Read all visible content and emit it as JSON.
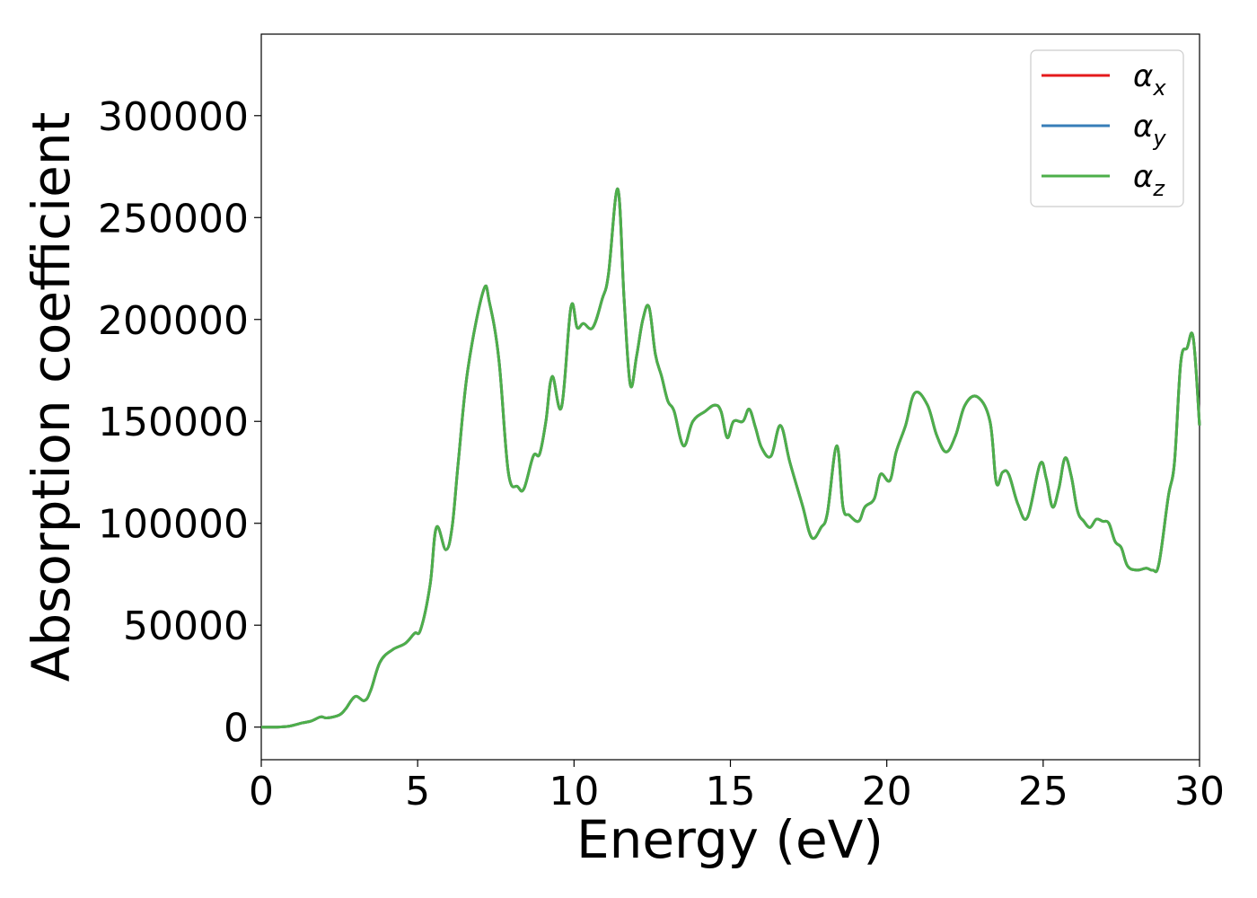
{
  "chart_data": {
    "type": "line",
    "xlabel": "Energy (eV)",
    "ylabel": "Absorption coefficient",
    "xlim": [
      0,
      30
    ],
    "ylim": [
      -16000,
      340000
    ],
    "xticks": [
      0,
      5,
      10,
      15,
      20,
      25,
      30
    ],
    "xtick_labels": [
      "0",
      "5",
      "10",
      "15",
      "20",
      "25",
      "30"
    ],
    "yticks": [
      0,
      50000,
      100000,
      150000,
      200000,
      250000,
      300000
    ],
    "ytick_labels": [
      "0",
      "50000",
      "100000",
      "150000",
      "200000",
      "250000",
      "300000"
    ],
    "grid": false,
    "legend_position": "top-right",
    "x": [
      0,
      0.5,
      0.9,
      1.3,
      1.6,
      1.9,
      2.1,
      2.5,
      2.7,
      3.0,
      3.3,
      3.5,
      3.8,
      4.2,
      4.6,
      4.9,
      5.1,
      5.4,
      5.6,
      5.9,
      6.1,
      6.3,
      6.6,
      7.1,
      7.3,
      7.6,
      7.9,
      8.2,
      8.4,
      8.7,
      8.9,
      9.1,
      9.3,
      9.6,
      9.9,
      10.1,
      10.3,
      10.6,
      10.9,
      11.1,
      11.4,
      11.6,
      11.8,
      12.0,
      12.2,
      12.4,
      12.6,
      12.8,
      13.0,
      13.2,
      13.5,
      13.8,
      14.2,
      14.5,
      14.7,
      14.9,
      15.1,
      15.4,
      15.6,
      15.8,
      16.0,
      16.3,
      16.6,
      16.9,
      17.3,
      17.6,
      17.9,
      18.1,
      18.4,
      18.6,
      18.8,
      19.1,
      19.3,
      19.6,
      19.8,
      20.1,
      20.3,
      20.6,
      20.9,
      21.3,
      21.6,
      21.9,
      22.2,
      22.5,
      22.9,
      23.3,
      23.5,
      23.7,
      23.9,
      24.2,
      24.5,
      24.9,
      25.1,
      25.3,
      25.5,
      25.7,
      25.9,
      26.1,
      26.3,
      26.5,
      26.7,
      26.9,
      27.1,
      27.3,
      27.5,
      27.7,
      28.0,
      28.3,
      28.5,
      28.7,
      29.0,
      29.2,
      29.4,
      29.6,
      29.8,
      30.0
    ],
    "series": [
      {
        "name": "αx",
        "color": "#e41a1c",
        "values": [
          0,
          0,
          500,
          2000,
          3000,
          5000,
          4500,
          6000,
          9000,
          15000,
          13000,
          18000,
          32000,
          38000,
          41000,
          46000,
          48000,
          70000,
          98000,
          87000,
          98000,
          130000,
          175000,
          214000,
          208000,
          180000,
          125000,
          118000,
          117000,
          133000,
          134000,
          150000,
          172000,
          157000,
          206000,
          196000,
          198000,
          196000,
          210000,
          222000,
          264000,
          210000,
          168000,
          182000,
          200000,
          206000,
          183000,
          172000,
          160000,
          155000,
          138000,
          150000,
          155000,
          158000,
          155000,
          142000,
          150000,
          150000,
          156000,
          147000,
          137000,
          133000,
          148000,
          130000,
          109000,
          93000,
          98000,
          105000,
          138000,
          108000,
          104000,
          101000,
          108000,
          112000,
          124000,
          121000,
          135000,
          148000,
          164000,
          158000,
          143000,
          135000,
          143000,
          158000,
          162000,
          150000,
          120000,
          125000,
          124000,
          109000,
          103000,
          129000,
          122000,
          108000,
          117000,
          132000,
          123000,
          106000,
          101000,
          98000,
          102000,
          101000,
          100000,
          91000,
          88000,
          79000,
          77000,
          78000,
          77000,
          80000,
          113000,
          130000,
          179000,
          186000,
          191000,
          148000
        ]
      },
      {
        "name": "αy",
        "color": "#377eb8",
        "values": [
          0,
          0,
          500,
          2000,
          3000,
          5000,
          4500,
          6000,
          9000,
          15000,
          13000,
          18000,
          32000,
          38000,
          41000,
          46000,
          48000,
          70000,
          98000,
          87000,
          98000,
          130000,
          175000,
          214000,
          208000,
          180000,
          125000,
          118000,
          117000,
          133000,
          134000,
          150000,
          172000,
          157000,
          206000,
          196000,
          198000,
          196000,
          210000,
          222000,
          264000,
          210000,
          168000,
          182000,
          200000,
          206000,
          183000,
          172000,
          160000,
          155000,
          138000,
          150000,
          155000,
          158000,
          155000,
          142000,
          150000,
          150000,
          156000,
          147000,
          137000,
          133000,
          148000,
          130000,
          109000,
          93000,
          98000,
          105000,
          138000,
          108000,
          104000,
          101000,
          108000,
          112000,
          124000,
          121000,
          135000,
          148000,
          164000,
          158000,
          143000,
          135000,
          143000,
          158000,
          162000,
          150000,
          120000,
          125000,
          124000,
          109000,
          103000,
          129000,
          122000,
          108000,
          117000,
          132000,
          123000,
          106000,
          101000,
          98000,
          102000,
          101000,
          100000,
          91000,
          88000,
          79000,
          77000,
          78000,
          77000,
          80000,
          113000,
          130000,
          179000,
          186000,
          191000,
          148000
        ]
      },
      {
        "name": "αz",
        "color": "#4daf4a",
        "values": [
          0,
          0,
          500,
          2000,
          3000,
          5000,
          4500,
          6000,
          9000,
          15000,
          13000,
          18000,
          32000,
          38000,
          41000,
          46000,
          48000,
          70000,
          98000,
          87000,
          98000,
          130000,
          175000,
          214000,
          208000,
          180000,
          125000,
          118000,
          117000,
          133000,
          134000,
          150000,
          172000,
          157000,
          206000,
          196000,
          198000,
          196000,
          210000,
          222000,
          264000,
          210000,
          168000,
          182000,
          200000,
          206000,
          183000,
          172000,
          160000,
          155000,
          138000,
          150000,
          155000,
          158000,
          155000,
          142000,
          150000,
          150000,
          156000,
          147000,
          137000,
          133000,
          148000,
          130000,
          109000,
          93000,
          98000,
          105000,
          138000,
          108000,
          104000,
          101000,
          108000,
          112000,
          124000,
          121000,
          135000,
          148000,
          164000,
          158000,
          143000,
          135000,
          143000,
          158000,
          162000,
          150000,
          120000,
          125000,
          124000,
          109000,
          103000,
          129000,
          122000,
          108000,
          117000,
          132000,
          123000,
          106000,
          101000,
          98000,
          102000,
          101000,
          100000,
          91000,
          88000,
          79000,
          77000,
          78000,
          77000,
          80000,
          113000,
          130000,
          179000,
          186000,
          191000,
          148000
        ]
      }
    ],
    "legend": [
      {
        "symbol": "α",
        "sub": "x",
        "color": "#e41a1c"
      },
      {
        "symbol": "α",
        "sub": "y",
        "color": "#377eb8"
      },
      {
        "symbol": "α",
        "sub": "z",
        "color": "#4daf4a"
      }
    ]
  }
}
